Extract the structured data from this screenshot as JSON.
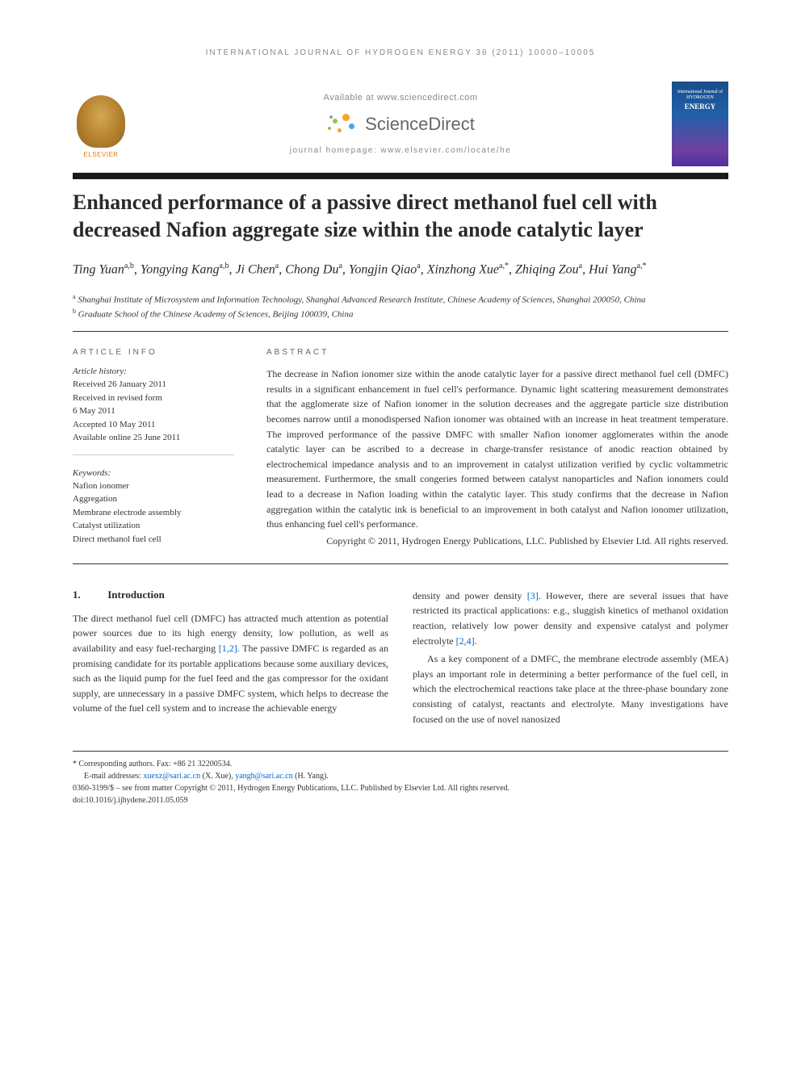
{
  "running_header": "INTERNATIONAL JOURNAL OF HYDROGEN ENERGY 36 (2011) 10000–10005",
  "header": {
    "available": "Available at www.sciencedirect.com",
    "sciencedirect": "ScienceDirect",
    "homepage": "journal homepage: www.elsevier.com/locate/he",
    "elsevier": "ELSEVIER",
    "cover_line1": "International Journal of",
    "cover_line2": "HYDROGEN",
    "cover_line3": "ENERGY"
  },
  "title": "Enhanced performance of a passive direct methanol fuel cell with decreased Nafion aggregate size within the anode catalytic layer",
  "authors_html": "Ting Yuan",
  "authors": [
    {
      "name": "Ting Yuan",
      "sup": "a,b"
    },
    {
      "name": "Yongying Kang",
      "sup": "a,b"
    },
    {
      "name": "Ji Chen",
      "sup": "a"
    },
    {
      "name": "Chong Du",
      "sup": "a"
    },
    {
      "name": "Yongjin Qiao",
      "sup": "a"
    },
    {
      "name": "Xinzhong Xue",
      "sup": "a,*"
    },
    {
      "name": "Zhiqing Zou",
      "sup": "a"
    },
    {
      "name": "Hui Yang",
      "sup": "a,*"
    }
  ],
  "affiliations": [
    {
      "sup": "a",
      "text": "Shanghai Institute of Microsystem and Information Technology, Shanghai Advanced Research Institute, Chinese Academy of Sciences, Shanghai 200050, China"
    },
    {
      "sup": "b",
      "text": "Graduate School of the Chinese Academy of Sciences, Beijing 100039, China"
    }
  ],
  "article_info": {
    "heading": "ARTICLE INFO",
    "history_label": "Article history:",
    "history": [
      "Received 26 January 2011",
      "Received in revised form",
      "6 May 2011",
      "Accepted 10 May 2011",
      "Available online 25 June 2011"
    ],
    "keywords_label": "Keywords:",
    "keywords": [
      "Nafion ionomer",
      "Aggregation",
      "Membrane electrode assembly",
      "Catalyst utilization",
      "Direct methanol fuel cell"
    ]
  },
  "abstract": {
    "heading": "ABSTRACT",
    "text": "The decrease in Nafion ionomer size within the anode catalytic layer for a passive direct methanol fuel cell (DMFC) results in a significant enhancement in fuel cell's performance. Dynamic light scattering measurement demonstrates that the agglomerate size of Nafion ionomer in the solution decreases and the aggregate particle size distribution becomes narrow until a monodispersed Nafion ionomer was obtained with an increase in heat treatment temperature. The improved performance of the passive DMFC with smaller Nafion ionomer agglomerates within the anode catalytic layer can be ascribed to a decrease in charge-transfer resistance of anodic reaction obtained by electrochemical impedance analysis and to an improvement in catalyst utilization verified by cyclic voltammetric measurement. Furthermore, the small congeries formed between catalyst nanoparticles and Nafion ionomers could lead to a decrease in Nafion loading within the catalytic layer. This study confirms that the decrease in Nafion aggregation within the catalytic ink is beneficial to an improvement in both catalyst and Nafion ionomer utilization, thus enhancing fuel cell's performance.",
    "copyright": "Copyright © 2011, Hydrogen Energy Publications, LLC. Published by Elsevier Ltd. All rights reserved."
  },
  "section1": {
    "num": "1.",
    "title": "Introduction"
  },
  "body": {
    "col1_p1": "The direct methanol fuel cell (DMFC) has attracted much attention as potential power sources due to its high energy density, low pollution, as well as availability and easy fuel-recharging [1,2]. The passive DMFC is regarded as an promising candidate for its portable applications because some auxiliary devices, such as the liquid pump for the fuel feed and the gas compressor for the oxidant supply, are unnecessary in a passive DMFC system, which helps to decrease the volume of the fuel cell system and to increase the achievable energy",
    "col2_p1": "density and power density [3]. However, there are several issues that have restricted its practical applications: e.g., sluggish kinetics of methanol oxidation reaction, relatively low power density and expensive catalyst and polymer electrolyte [2,4].",
    "col2_p2": "As a key component of a DMFC, the membrane electrode assembly (MEA) plays an important role in determining a better performance of the fuel cell, in which the electrochemical reactions take place at the three-phase boundary zone consisting of catalyst, reactants and electrolyte. Many investigations have focused on the use of novel nanosized"
  },
  "refs": {
    "r12": "[1,2]",
    "r3": "[3]",
    "r24": "[2,4]"
  },
  "footer": {
    "corresponding": "* Corresponding authors. Fax: +86 21 32200534.",
    "email_label": "E-mail addresses: ",
    "email1": "xuexz@sari.ac.cn",
    "email1_name": " (X. Xue), ",
    "email2": "yangh@sari.ac.cn",
    "email2_name": " (H. Yang).",
    "issn": "0360-3199/$ – see front matter Copyright © 2011, Hydrogen Energy Publications, LLC. Published by Elsevier Ltd. All rights reserved.",
    "doi": "doi:10.1016/j.ijhydene.2011.05.059"
  },
  "colors": {
    "text": "#333333",
    "link": "#0066cc",
    "title_bar": "#1a1a1a",
    "elsevier_orange": "#e67817",
    "sd_orange": "#f5a623",
    "sd_green": "#8bc34a",
    "sd_blue": "#42a5f5",
    "cover_blue": "#1a4d8c"
  }
}
